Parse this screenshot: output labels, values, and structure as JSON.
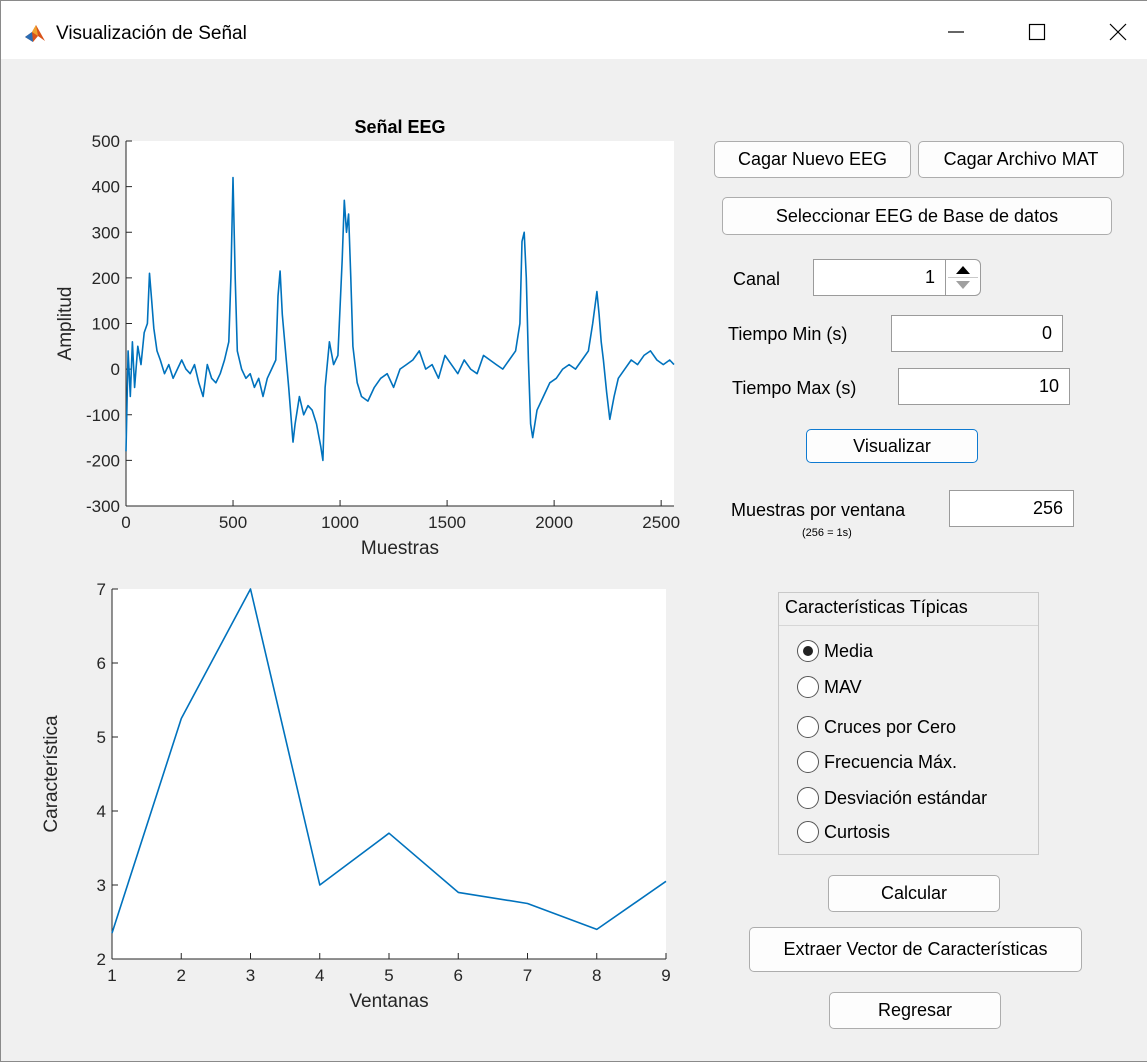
{
  "window": {
    "title": "Visualización de Señal"
  },
  "left_panel": {
    "top_chart_title": "Señal EEG",
    "top_xlabel": "Muestras",
    "top_ylabel": "Amplitud",
    "bottom_xlabel": "Ventanas",
    "bottom_ylabel": "Característica"
  },
  "controls": {
    "load_eeg_label": "Cagar Nuevo EEG",
    "load_mat_label": "Cagar Archivo MAT",
    "select_db_label": "Seleccionar EEG de Base de datos",
    "channel_label": "Canal",
    "channel_value": "1",
    "tmin_label": "Tiempo Min (s)",
    "tmin_value": "0",
    "tmax_label": "Tiempo Max (s)",
    "tmax_value": "10",
    "visualize_label": "Visualizar",
    "samples_label": "Muestras por ventana",
    "samples_hint": "(256 = 1s)",
    "samples_value": "256",
    "features_group_title": "Características Típicas",
    "features": [
      {
        "label": "Media",
        "selected": true
      },
      {
        "label": "MAV",
        "selected": false
      },
      {
        "label": "Cruces por Cero",
        "selected": false
      },
      {
        "label": "Frecuencia Máx.",
        "selected": false
      },
      {
        "label": "Desviación estándar",
        "selected": false
      },
      {
        "label": "Curtosis",
        "selected": false
      }
    ],
    "calculate_label": "Calcular",
    "extract_label": "Extraer Vector de Características",
    "back_label": "Regresar"
  },
  "chart_data": [
    {
      "type": "line",
      "title": "Señal EEG",
      "xlabel": "Muestras",
      "ylabel": "Amplitud",
      "xlim": [
        0,
        2560
      ],
      "ylim": [
        -300,
        500
      ],
      "xticks": [
        0,
        500,
        1000,
        1500,
        2000,
        2500
      ],
      "yticks": [
        -300,
        -200,
        -100,
        0,
        100,
        200,
        300,
        400,
        500
      ],
      "color": "#0072bd",
      "x": [
        0,
        10,
        20,
        30,
        40,
        55,
        70,
        85,
        100,
        110,
        120,
        130,
        145,
        160,
        180,
        200,
        220,
        240,
        260,
        280,
        300,
        320,
        340,
        360,
        380,
        400,
        420,
        440,
        460,
        480,
        490,
        500,
        510,
        520,
        540,
        560,
        580,
        600,
        620,
        640,
        660,
        680,
        700,
        710,
        720,
        730,
        745,
        760,
        780,
        790,
        810,
        830,
        850,
        870,
        890,
        910,
        920,
        930,
        950,
        970,
        990,
        1010,
        1020,
        1030,
        1040,
        1050,
        1060,
        1080,
        1100,
        1130,
        1160,
        1190,
        1220,
        1250,
        1280,
        1310,
        1340,
        1370,
        1400,
        1430,
        1460,
        1490,
        1520,
        1550,
        1580,
        1610,
        1640,
        1670,
        1700,
        1730,
        1760,
        1790,
        1820,
        1840,
        1850,
        1860,
        1870,
        1880,
        1890,
        1900,
        1920,
        1950,
        1980,
        2010,
        2040,
        2070,
        2100,
        2130,
        2160,
        2180,
        2200,
        2210,
        2220,
        2230,
        2245,
        2260,
        2280,
        2300,
        2330,
        2360,
        2390,
        2420,
        2450,
        2480,
        2510,
        2540,
        2560
      ],
      "y": [
        -180,
        40,
        -60,
        60,
        -40,
        50,
        10,
        80,
        100,
        210,
        150,
        90,
        40,
        20,
        -10,
        10,
        -20,
        0,
        20,
        0,
        -10,
        10,
        -30,
        -60,
        10,
        -20,
        -30,
        -10,
        20,
        60,
        200,
        420,
        200,
        40,
        0,
        -20,
        -10,
        -40,
        -20,
        -60,
        -20,
        0,
        20,
        160,
        215,
        120,
        40,
        -40,
        -160,
        -120,
        -60,
        -100,
        -80,
        -90,
        -120,
        -170,
        -200,
        -40,
        60,
        10,
        30,
        240,
        370,
        300,
        340,
        200,
        50,
        -30,
        -60,
        -70,
        -40,
        -20,
        -10,
        -40,
        0,
        10,
        20,
        40,
        0,
        10,
        -20,
        30,
        10,
        -10,
        20,
        0,
        -10,
        30,
        20,
        10,
        0,
        20,
        40,
        100,
        280,
        300,
        200,
        20,
        -120,
        -150,
        -90,
        -60,
        -30,
        -20,
        0,
        10,
        0,
        20,
        40,
        100,
        170,
        120,
        60,
        20,
        -50,
        -110,
        -60,
        -20,
        0,
        20,
        10,
        30,
        40,
        20,
        10,
        20,
        10
      ]
    },
    {
      "type": "line",
      "title": "",
      "xlabel": "Ventanas",
      "ylabel": "Característica",
      "xlim": [
        1,
        9
      ],
      "ylim": [
        2,
        7
      ],
      "xticks": [
        1,
        2,
        3,
        4,
        5,
        6,
        7,
        8,
        9
      ],
      "yticks": [
        2,
        3,
        4,
        5,
        6,
        7
      ],
      "color": "#0072bd",
      "x": [
        1,
        2,
        3,
        4,
        5,
        6,
        7,
        8,
        9
      ],
      "y": [
        2.35,
        5.25,
        7.0,
        3.0,
        3.7,
        2.9,
        2.75,
        2.4,
        3.05
      ]
    }
  ]
}
